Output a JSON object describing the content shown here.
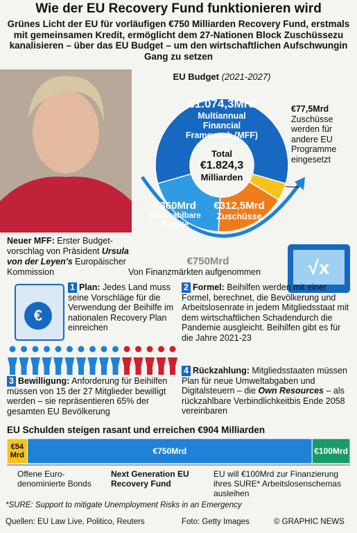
{
  "title": "Wie der EU Recovery Fund funktionieren wird",
  "subtitle": "Grünes Licht der EU für vorläufigen €750 Milliarden Recovery Fund, erstmals mit gemeinsamen Kredit, ermöglicht dem 27-Nationen Block Zuschüssezu kanalisieren – über das EU Budget – um den wirtschaftlichen Aufschwungin Gang zu setzen",
  "budget": {
    "title": "EU Budget",
    "period": "(2021-2027)",
    "total_label": "Total",
    "total": "€1.824,3",
    "total_unit": "Milliarden",
    "segments": [
      {
        "label": "€1.074,3Mrd",
        "name": "Multiannual Financial Framework (MFF)",
        "value": 1074.3,
        "color": "#1768c0"
      },
      {
        "label": "€77,5Mrd",
        "name": "Zuschüsse werden für andere EU Programme eingesetzt",
        "value": 77.5,
        "color": "#f8c21c"
      },
      {
        "label": "€312,5Mrd",
        "name": "Zuschüsse",
        "value": 312.5,
        "color": "#f07b1b"
      },
      {
        "label": "€360Mrd",
        "name": "Rückzahlbare Kredite",
        "value": 360,
        "color": "#2f9be2"
      }
    ],
    "recovery_label": "€750Mrd",
    "recovery_note": "Von Finanzmärkten aufgenommen"
  },
  "mff_note": {
    "heading": "Neuer MFF:",
    "text1": "Erster Budget-vorschlag von Präsident",
    "name": "Ursula von der Leyen's",
    "text2": "Europäischer Kommission"
  },
  "steps": [
    {
      "number": "1",
      "heading": "Plan:",
      "text": "Jedes Land muss seine Vorschläge für die Verwendung der Beihilfe im nationalen Recovery Plan einreichen"
    },
    {
      "number": "2",
      "heading": "Formel:",
      "text": "Beihilfen werden mit einer Formel, berechnet, die Bevölkerung und Arbeitslosenrate in jedem Mitgliedsstaat mit dem wirtschaftlichen Schadendurch die Pandemie ausgleicht. Beihilfen gibt es für die Jahre 2021-23"
    },
    {
      "number": "3",
      "heading": "Bewilligung:",
      "text": "Anforderung für Beihilfen müssen von 15 der 27 Mitglieder bewilligt werden – sie repräsentieren 65% der gesamten EU Bevölkerung"
    },
    {
      "number": "4",
      "heading": "Rückzahlung:",
      "text": "Mitgliedsstaaten müssen Plan für neue Umweltabgaben und Digitalsteuern – die",
      "emphasis": "Own Resources",
      "text2": "– als rückzahlbare Verbindlichkeitbis Ende 2058 vereinbaren"
    }
  ],
  "debt": {
    "title": "EU Schulden steigen rasant und erreichen €904 Milliarden",
    "segments": [
      {
        "label": "€54 Mrd",
        "value": 54,
        "color": "#f8c21c",
        "caption": "Offene Euro-denominierte Bonds"
      },
      {
        "label": "€750Mrd",
        "value": 750,
        "color": "#1f82d6",
        "caption": "Next Generation EU Recovery Fund"
      },
      {
        "label": "€100Mrd",
        "value": 100,
        "color": "#1a9a6a",
        "caption": "EU will €100Mrd zur Finanzierung ihres SURE* Arbeitslosenschemas ausleihen"
      }
    ],
    "footnote": "*SURE: Support to mitigate Unemployment Risks in an Emergency"
  },
  "footer": {
    "sources": "Quellen: EU Law Live, Politico, Reuters",
    "photo": "Foto: Getty Images",
    "credit": "© GRAPHIC NEWS"
  }
}
